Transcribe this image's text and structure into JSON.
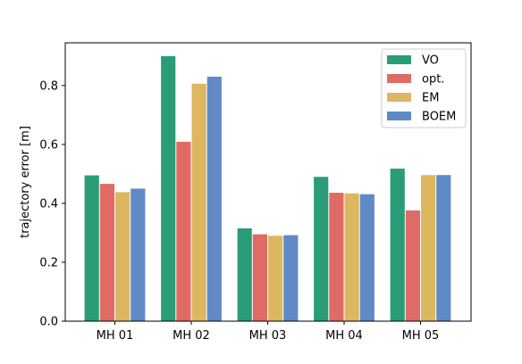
{
  "chart_data": {
    "type": "bar",
    "title": "",
    "xlabel": "",
    "ylabel": "trajectory error [m]",
    "categories": [
      "MH 01",
      "MH 02",
      "MH 03",
      "MH 04",
      "MH 05"
    ],
    "ylim": [
      0,
      0.945
    ],
    "yticks": [
      "0.0",
      "0.2",
      "0.4",
      "0.6",
      "0.8"
    ],
    "ytick_values": [
      0,
      0.2,
      0.4,
      0.6,
      0.8
    ],
    "legend_position": "top-right",
    "grid": false,
    "series": [
      {
        "name": "VO",
        "color": "#2a9d78",
        "values": [
          0.495,
          0.9,
          0.315,
          0.49,
          0.518
        ]
      },
      {
        "name": "opt.",
        "color": "#e06a64",
        "values": [
          0.466,
          0.609,
          0.295,
          0.436,
          0.376
        ]
      },
      {
        "name": "EM",
        "color": "#ddb75f",
        "values": [
          0.438,
          0.806,
          0.29,
          0.434,
          0.496
        ]
      },
      {
        "name": "BOEM",
        "color": "#5f8ac6",
        "values": [
          0.45,
          0.83,
          0.292,
          0.431,
          0.496
        ]
      }
    ]
  }
}
